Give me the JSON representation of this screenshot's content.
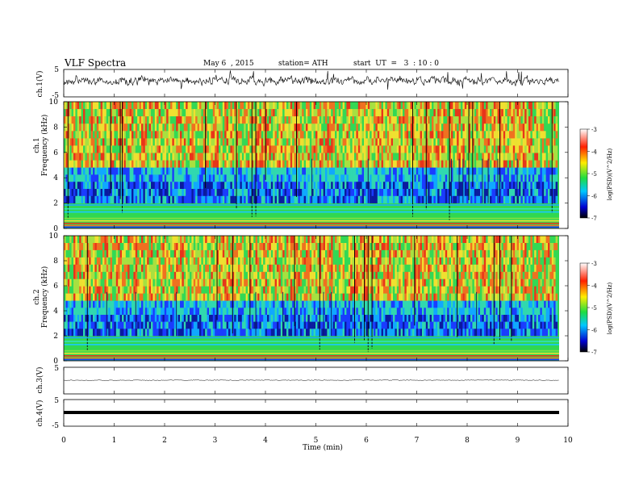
{
  "header": {
    "title": "VLF  Spectra",
    "date": "May 6  , 2015",
    "station": "station= ATH",
    "start": "start  UT  =   3  : 10 : 0"
  },
  "chart_data": [
    {
      "type": "line",
      "ylabel": "ch.1(V)",
      "ylim": [
        -5,
        5
      ],
      "yticks": [
        "5",
        "-5"
      ],
      "xlim": [
        0,
        10
      ]
    },
    {
      "type": "heatmap",
      "ylabel_top": "ch.1",
      "ylabel": "Frequency  (kHz)",
      "ylim": [
        0,
        10
      ],
      "yticks": [
        "0",
        "2",
        "4",
        "6",
        "8",
        "10"
      ],
      "colorbar": {
        "label": "log(PSD)(V^2/Hz)",
        "ticks": [
          "-3",
          "-4",
          "-5",
          "-6",
          "-7"
        ],
        "range": [
          -7,
          -3
        ]
      }
    },
    {
      "type": "heatmap",
      "ylabel_top": "ch.2",
      "ylabel": "Frequency  (kHz)",
      "ylim": [
        0,
        10
      ],
      "yticks": [
        "0",
        "2",
        "4",
        "6",
        "8",
        "10"
      ],
      "colorbar": {
        "label": "log(PSD)(V^2/Hz)",
        "ticks": [
          "-3",
          "-4",
          "-5",
          "-6",
          "-7"
        ],
        "range": [
          -7,
          -3
        ]
      }
    },
    {
      "type": "line",
      "ylabel": "ch.3(V)",
      "ylim": [
        -5,
        5
      ],
      "yticks": [
        "5"
      ]
    },
    {
      "type": "line",
      "ylabel": "ch.4(V)",
      "ylim": [
        -5,
        5
      ],
      "yticks": [
        "5",
        "-5"
      ],
      "xlabel": "Time  (min)",
      "xlim": [
        0,
        10
      ],
      "xticks": [
        "0",
        "1",
        "2",
        "3",
        "4",
        "5",
        "6",
        "7",
        "8",
        "9",
        "10"
      ]
    }
  ],
  "colors": {
    "trace": "#000000",
    "background_band": "#33dd55",
    "hiss_high": "#e83a14",
    "hiss_mid": "#f0e030",
    "low_band": "#1a3cff"
  }
}
